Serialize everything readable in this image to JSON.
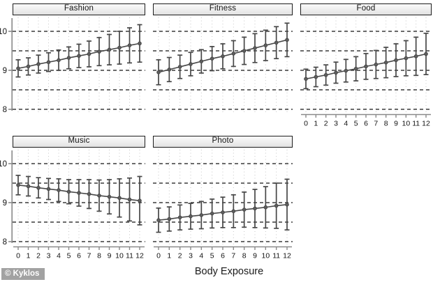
{
  "watermark": {
    "label": "© Kyklos"
  },
  "axis": {
    "x_title": "Body Exposure",
    "x_ticks": [
      "0",
      "1",
      "2",
      "3",
      "4",
      "5",
      "6",
      "7",
      "8",
      "9",
      "10",
      "11",
      "12"
    ],
    "y_ticks": [
      "10",
      "9",
      "8"
    ],
    "ylim": [
      7.9,
      10.35
    ],
    "grid": "horizontal dashed at 0.5 steps; vertical dotted at each x",
    "legend": "none"
  },
  "colors": {
    "series": "#474747",
    "marker_fill": "#5e5e5e",
    "grid_dashed": "#3a3a3a",
    "grid_dotted": "#c6c6c6",
    "axis_line": "#8a8a8a",
    "title_fill": "#ececec",
    "title_border": "#1c1c1c",
    "watermark_bg": "#a2a2a2",
    "watermark_text": "#ffffff"
  },
  "chart_data": [
    {
      "type": "line",
      "title": "Fashion",
      "x": [
        0,
        1,
        2,
        3,
        4,
        5,
        6,
        7,
        8,
        9,
        10,
        11,
        12
      ],
      "mean": [
        9.05,
        9.1,
        9.16,
        9.21,
        9.26,
        9.32,
        9.37,
        9.42,
        9.48,
        9.53,
        9.58,
        9.64,
        9.69
      ],
      "ci_low": [
        8.83,
        8.88,
        8.93,
        8.97,
        9.0,
        9.04,
        9.07,
        9.09,
        9.12,
        9.14,
        9.16,
        9.19,
        9.21
      ],
      "ci_high": [
        9.27,
        9.32,
        9.39,
        9.45,
        9.52,
        9.6,
        9.67,
        9.75,
        9.84,
        9.92,
        10.0,
        10.09,
        10.17
      ],
      "ylim": [
        7.9,
        10.35
      ]
    },
    {
      "type": "line",
      "title": "Fitness",
      "x": [
        0,
        1,
        2,
        3,
        4,
        5,
        6,
        7,
        8,
        9,
        10,
        11,
        12
      ],
      "mean": [
        8.95,
        9.02,
        9.09,
        9.16,
        9.23,
        9.3,
        9.36,
        9.43,
        9.5,
        9.57,
        9.64,
        9.71,
        9.78
      ],
      "ci_low": [
        8.63,
        8.71,
        8.79,
        8.86,
        8.93,
        8.99,
        9.04,
        9.1,
        9.15,
        9.2,
        9.25,
        9.3,
        9.35
      ],
      "ci_high": [
        9.27,
        9.33,
        9.39,
        9.46,
        9.53,
        9.61,
        9.68,
        9.76,
        9.85,
        9.94,
        10.03,
        10.12,
        10.21
      ],
      "ylim": [
        7.9,
        10.35
      ]
    },
    {
      "type": "line",
      "title": "Food",
      "x": [
        0,
        1,
        2,
        3,
        4,
        5,
        6,
        7,
        8,
        9,
        10,
        11,
        12
      ],
      "mean": [
        8.78,
        8.83,
        8.88,
        8.94,
        8.99,
        9.04,
        9.1,
        9.15,
        9.2,
        9.26,
        9.31,
        9.36,
        9.42
      ],
      "ci_low": [
        8.53,
        8.58,
        8.62,
        8.67,
        8.7,
        8.73,
        8.77,
        8.79,
        8.81,
        8.84,
        8.86,
        8.87,
        8.89
      ],
      "ci_high": [
        9.03,
        9.08,
        9.14,
        9.21,
        9.28,
        9.35,
        9.43,
        9.51,
        9.59,
        9.68,
        9.76,
        9.85,
        9.95
      ],
      "ylim": [
        7.9,
        10.35
      ]
    },
    {
      "type": "line",
      "title": "Music",
      "x": [
        0,
        1,
        2,
        3,
        4,
        5,
        6,
        7,
        8,
        9,
        10,
        11,
        12
      ],
      "mean": [
        9.45,
        9.42,
        9.38,
        9.35,
        9.32,
        9.28,
        9.25,
        9.22,
        9.18,
        9.15,
        9.12,
        9.08,
        9.05
      ],
      "ci_low": [
        9.2,
        9.17,
        9.12,
        9.08,
        9.03,
        8.97,
        8.91,
        8.85,
        8.78,
        8.71,
        8.63,
        8.53,
        8.43
      ],
      "ci_high": [
        9.7,
        9.67,
        9.64,
        9.62,
        9.61,
        9.59,
        9.59,
        9.59,
        9.58,
        9.59,
        9.61,
        9.63,
        9.67
      ],
      "ylim": [
        7.9,
        10.35
      ]
    },
    {
      "type": "line",
      "title": "Photo",
      "x": [
        0,
        1,
        2,
        3,
        4,
        5,
        6,
        7,
        8,
        9,
        10,
        11,
        12
      ],
      "mean": [
        8.55,
        8.58,
        8.62,
        8.65,
        8.68,
        8.72,
        8.75,
        8.78,
        8.82,
        8.85,
        8.88,
        8.92,
        8.95
      ],
      "ci_low": [
        8.24,
        8.27,
        8.3,
        8.32,
        8.33,
        8.35,
        8.36,
        8.36,
        8.37,
        8.36,
        8.35,
        8.34,
        8.3
      ],
      "ci_high": [
        8.86,
        8.89,
        8.94,
        8.98,
        9.03,
        9.09,
        9.14,
        9.2,
        9.27,
        9.34,
        9.41,
        9.5,
        9.6
      ],
      "ylim": [
        7.9,
        10.35
      ]
    }
  ]
}
